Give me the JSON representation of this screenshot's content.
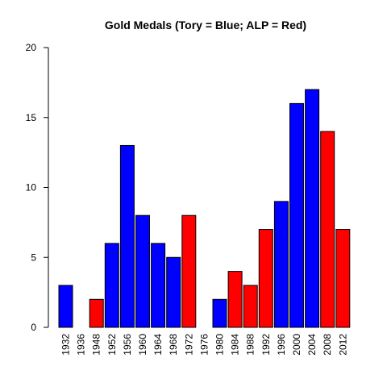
{
  "chart_data": {
    "type": "bar",
    "title": "Gold Medals (Tory = Blue; ALP = Red)",
    "xlabel": "",
    "ylabel": "",
    "ylim": [
      0,
      20
    ],
    "yticks": [
      0,
      5,
      10,
      15,
      20
    ],
    "grid": false,
    "categories": [
      "1932",
      "1936",
      "1948",
      "1952",
      "1956",
      "1960",
      "1964",
      "1968",
      "1972",
      "1976",
      "1980",
      "1984",
      "1988",
      "1992",
      "1996",
      "2000",
      "2004",
      "2008",
      "2012"
    ],
    "values": [
      3,
      0,
      2,
      6,
      13,
      8,
      6,
      5,
      8,
      0,
      2,
      4,
      3,
      7,
      9,
      16,
      17,
      14,
      7
    ],
    "bar_colors": [
      "blue",
      "blue",
      "red",
      "blue",
      "blue",
      "blue",
      "blue",
      "blue",
      "red",
      "blue",
      "blue",
      "red",
      "red",
      "red",
      "blue",
      "blue",
      "blue",
      "red",
      "red"
    ],
    "colors": {
      "tory": "#0000ff",
      "alp": "#ff0000",
      "outline": "#000000"
    }
  }
}
